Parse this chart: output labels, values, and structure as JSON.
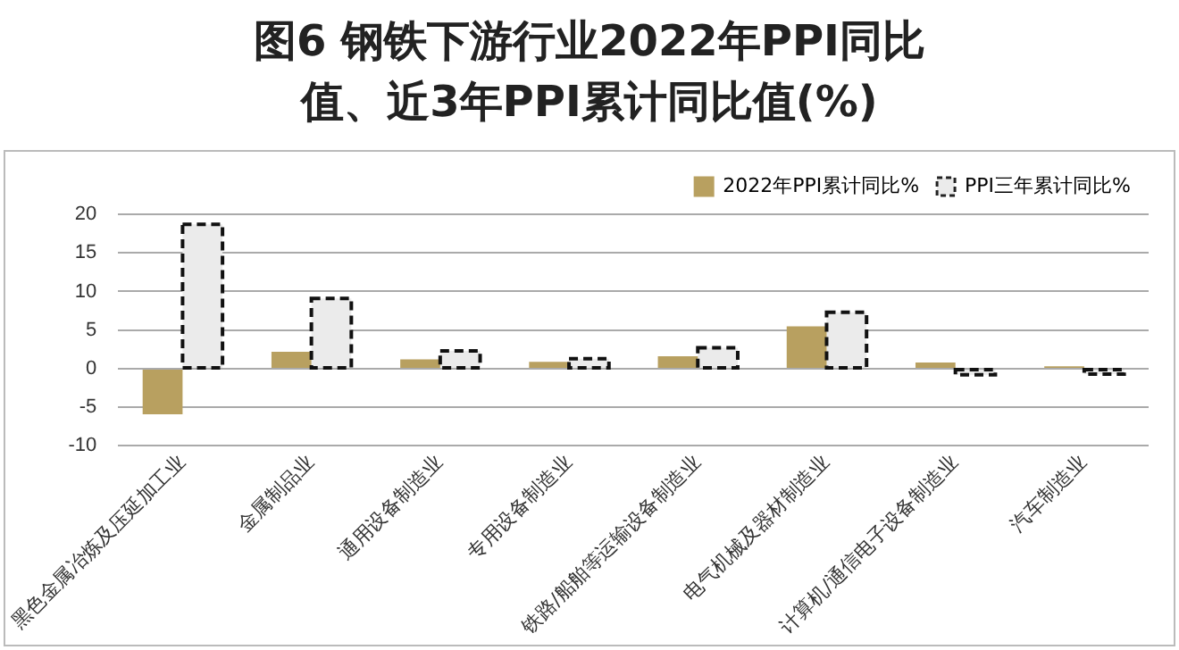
{
  "chart_data": {
    "type": "bar",
    "title": "图6 钢铁下游行业2022年PPI同比值、近3年PPI累计同比值(%)",
    "categories": [
      "黑色金属冶炼及压延加工业",
      "金属制品业",
      "通用设备制造业",
      "专用设备制造业",
      "铁路/船舶等运输设备制造业",
      "电气机械及器材制造业",
      "计算机/通信电子设备制造业",
      "汽车制造业"
    ],
    "series": [
      {
        "name": "2022年PPI累计同比%",
        "color": "#b8a060",
        "values": [
          -5.9,
          2.2,
          1.2,
          0.9,
          1.6,
          5.5,
          0.8,
          0.3
        ]
      },
      {
        "name": "PPI三年累计同比%",
        "color": "#ebebeb",
        "values": [
          18.7,
          9.1,
          2.3,
          1.3,
          2.7,
          7.3,
          -0.8,
          -0.7
        ]
      }
    ],
    "ylim": [
      -10,
      20
    ],
    "yticks": [
      -10,
      -5,
      0,
      5,
      10,
      15,
      20
    ],
    "grid": "y",
    "legend": "top right"
  }
}
